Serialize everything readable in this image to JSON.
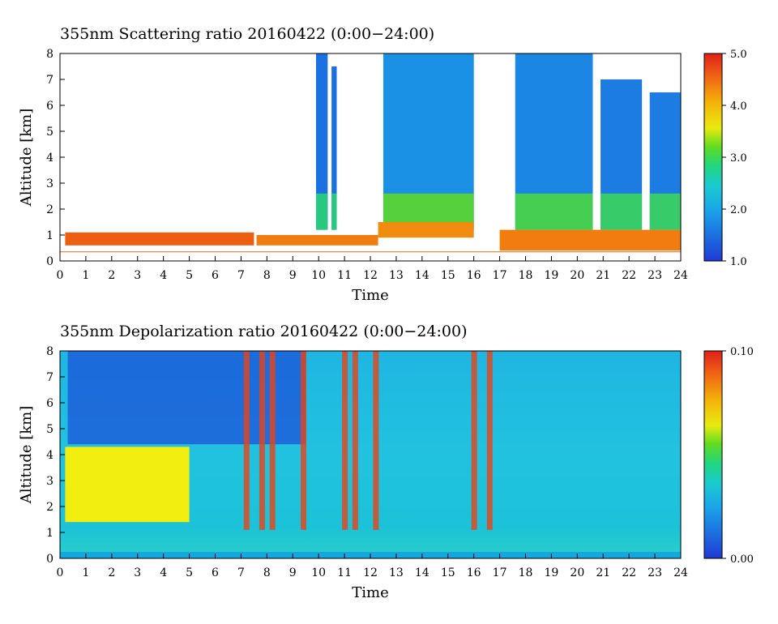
{
  "chart_data": [
    {
      "type": "heatmap",
      "title": "355nm Scattering ratio  20160422 (0:00−24:00)",
      "xlabel": "Time",
      "ylabel": "Altitude [km]",
      "xlim": [
        0,
        24
      ],
      "ylim": [
        0,
        8
      ],
      "x_ticks": [
        "0",
        "1",
        "2",
        "3",
        "4",
        "5",
        "6",
        "7",
        "8",
        "9",
        "10",
        "11",
        "12",
        "13",
        "14",
        "15",
        "16",
        "17",
        "18",
        "19",
        "20",
        "21",
        "22",
        "23",
        "24"
      ],
      "y_ticks": [
        "0",
        "1",
        "2",
        "3",
        "4",
        "5",
        "6",
        "7",
        "8"
      ],
      "colorbar": {
        "range": [
          1.0,
          5.0
        ],
        "tick_labels": [
          "1.0",
          "2.0",
          "3.0",
          "4.0",
          "5.0"
        ],
        "tick_values": [
          1.0,
          2.0,
          3.0,
          4.0,
          5.0
        ]
      },
      "features": {
        "low_layer": [
          {
            "x": [
              0.2,
              7.5
            ],
            "bottom": 0.6,
            "top": 1.1,
            "value": 4.6
          },
          {
            "x": [
              7.6,
              12.3
            ],
            "bottom": 0.6,
            "top": 1.0,
            "value": 4.4
          },
          {
            "x": [
              12.3,
              16.0
            ],
            "bottom": 0.9,
            "top": 1.5,
            "value": 4.3
          },
          {
            "x": [
              17.0,
              24.0
            ],
            "bottom": 0.4,
            "top": 1.2,
            "value": 4.4
          }
        ],
        "cloud_columns": [
          {
            "x": [
              9.9,
              10.35
            ],
            "top": 8.0,
            "value": 1.5
          },
          {
            "x": [
              10.5,
              10.7
            ],
            "top": 7.5,
            "value": 1.5
          },
          {
            "x": [
              12.5,
              16.0
            ],
            "top": 8.0,
            "value": 1.8
          },
          {
            "x": [
              17.6,
              20.6
            ],
            "top": 8.0,
            "value": 1.7
          },
          {
            "x": [
              20.9,
              22.5
            ],
            "top": 7.0,
            "value": 1.6
          },
          {
            "x": [
              22.8,
              24.0
            ],
            "top": 6.5,
            "value": 1.6
          }
        ]
      }
    },
    {
      "type": "heatmap",
      "title": "355nm Depolarization ratio  20160422 (0:00−24:00)",
      "xlabel": "Time",
      "ylabel": "Altitude [km]",
      "xlim": [
        0,
        24
      ],
      "ylim": [
        0,
        8
      ],
      "x_ticks": [
        "0",
        "1",
        "2",
        "3",
        "4",
        "5",
        "6",
        "7",
        "8",
        "9",
        "10",
        "11",
        "12",
        "13",
        "14",
        "15",
        "16",
        "17",
        "18",
        "19",
        "20",
        "21",
        "22",
        "23",
        "24"
      ],
      "y_ticks": [
        "0",
        "1",
        "2",
        "3",
        "4",
        "5",
        "6",
        "7",
        "8"
      ],
      "colorbar": {
        "range": [
          0.0,
          0.1
        ],
        "tick_labels": [
          "0.00",
          "0.10"
        ],
        "tick_values": [
          0.0,
          0.1
        ]
      },
      "features": {
        "dust_layer": {
          "x": [
            0.2,
            5.0
          ],
          "bottom": 1.4,
          "top": 4.3,
          "value": 0.065
        },
        "high_depol_streaks": [
          7.2,
          7.8,
          8.2,
          9.4,
          11.0,
          11.4,
          12.2,
          16.0,
          16.6
        ]
      }
    }
  ]
}
